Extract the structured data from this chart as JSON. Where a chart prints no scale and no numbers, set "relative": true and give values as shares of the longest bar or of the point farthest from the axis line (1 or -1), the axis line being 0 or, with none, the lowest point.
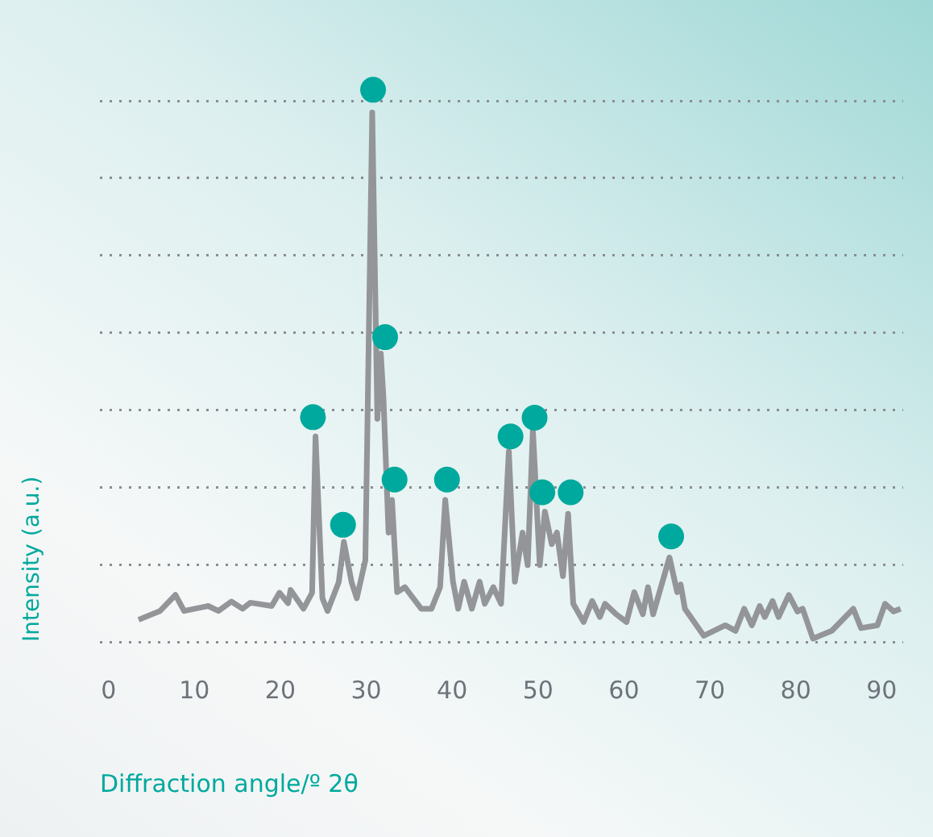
{
  "chart_data": {
    "type": "line",
    "xlabel": "Diffraction angle/º 2θ",
    "ylabel": "Intensity (a.u.)",
    "relative": true,
    "xlim": [
      -1,
      92.5
    ],
    "xticks": [
      0,
      10,
      20,
      30,
      40,
      50,
      60,
      70,
      80,
      90
    ],
    "grid": "y",
    "legend": false,
    "marker": "none",
    "series": [
      {
        "color": "#939598",
        "x": [
          3.5,
          6.0,
          7.8,
          8.8,
          11.6,
          12.8,
          14.3,
          15.6,
          16.5,
          19.0,
          19.9,
          20.9,
          21.2,
          22.7,
          23.7,
          24.1,
          24.9,
          25.5,
          26.8,
          27.4,
          28.3,
          28.9,
          29.9,
          30.7,
          31.3,
          31.7,
          32.0,
          32.6,
          33.0,
          33.6,
          34.5,
          36.4,
          37.6,
          38.6,
          39.2,
          40.1,
          40.7,
          41.4,
          42.3,
          43.2,
          43.8,
          44.8,
          45.7,
          46.6,
          47.3,
          48.2,
          48.8,
          49.4,
          50.2,
          50.8,
          51.6,
          52.2,
          52.9,
          53.5,
          54.1,
          55.3,
          56.3,
          57.2,
          57.8,
          59.1,
          60.3,
          61.2,
          62.2,
          62.8,
          63.4,
          65.3,
          66.2,
          66.6,
          67.1,
          69.3,
          71.8,
          73.0,
          74.0,
          74.9,
          75.8,
          76.4,
          77.3,
          78.0,
          79.2,
          80.2,
          80.8,
          82.0,
          84.2,
          86.7,
          87.6,
          89.5,
          90.4,
          91.4,
          92.2
        ],
        "values": [
          0.04,
          0.056,
          0.085,
          0.056,
          0.065,
          0.056,
          0.073,
          0.06,
          0.071,
          0.065,
          0.089,
          0.07,
          0.094,
          0.06,
          0.089,
          0.372,
          0.079,
          0.056,
          0.108,
          0.181,
          0.108,
          0.079,
          0.148,
          0.959,
          0.404,
          0.522,
          0.444,
          0.198,
          0.257,
          0.09,
          0.099,
          0.06,
          0.06,
          0.099,
          0.257,
          0.109,
          0.06,
          0.109,
          0.06,
          0.109,
          0.069,
          0.099,
          0.069,
          0.345,
          0.109,
          0.198,
          0.139,
          0.384,
          0.139,
          0.236,
          0.177,
          0.198,
          0.119,
          0.232,
          0.069,
          0.036,
          0.074,
          0.045,
          0.069,
          0.05,
          0.036,
          0.09,
          0.05,
          0.099,
          0.05,
          0.153,
          0.09,
          0.104,
          0.06,
          0.011,
          0.03,
          0.02,
          0.06,
          0.03,
          0.065,
          0.045,
          0.074,
          0.045,
          0.085,
          0.055,
          0.06,
          0.006,
          0.02,
          0.06,
          0.025,
          0.03,
          0.069,
          0.055,
          0.06
        ]
      },
      {
        "type": "scatter",
        "marker": "circle",
        "color": "#00a99d",
        "x": [
          23.8,
          27.3,
          30.8,
          32.2,
          33.3,
          39.4,
          46.8,
          49.6,
          50.5,
          53.8,
          65.5
        ],
        "values": [
          0.407,
          0.212,
          1.0,
          0.552,
          0.294,
          0.294,
          0.372,
          0.406,
          0.271,
          0.271,
          0.191
        ]
      }
    ]
  }
}
